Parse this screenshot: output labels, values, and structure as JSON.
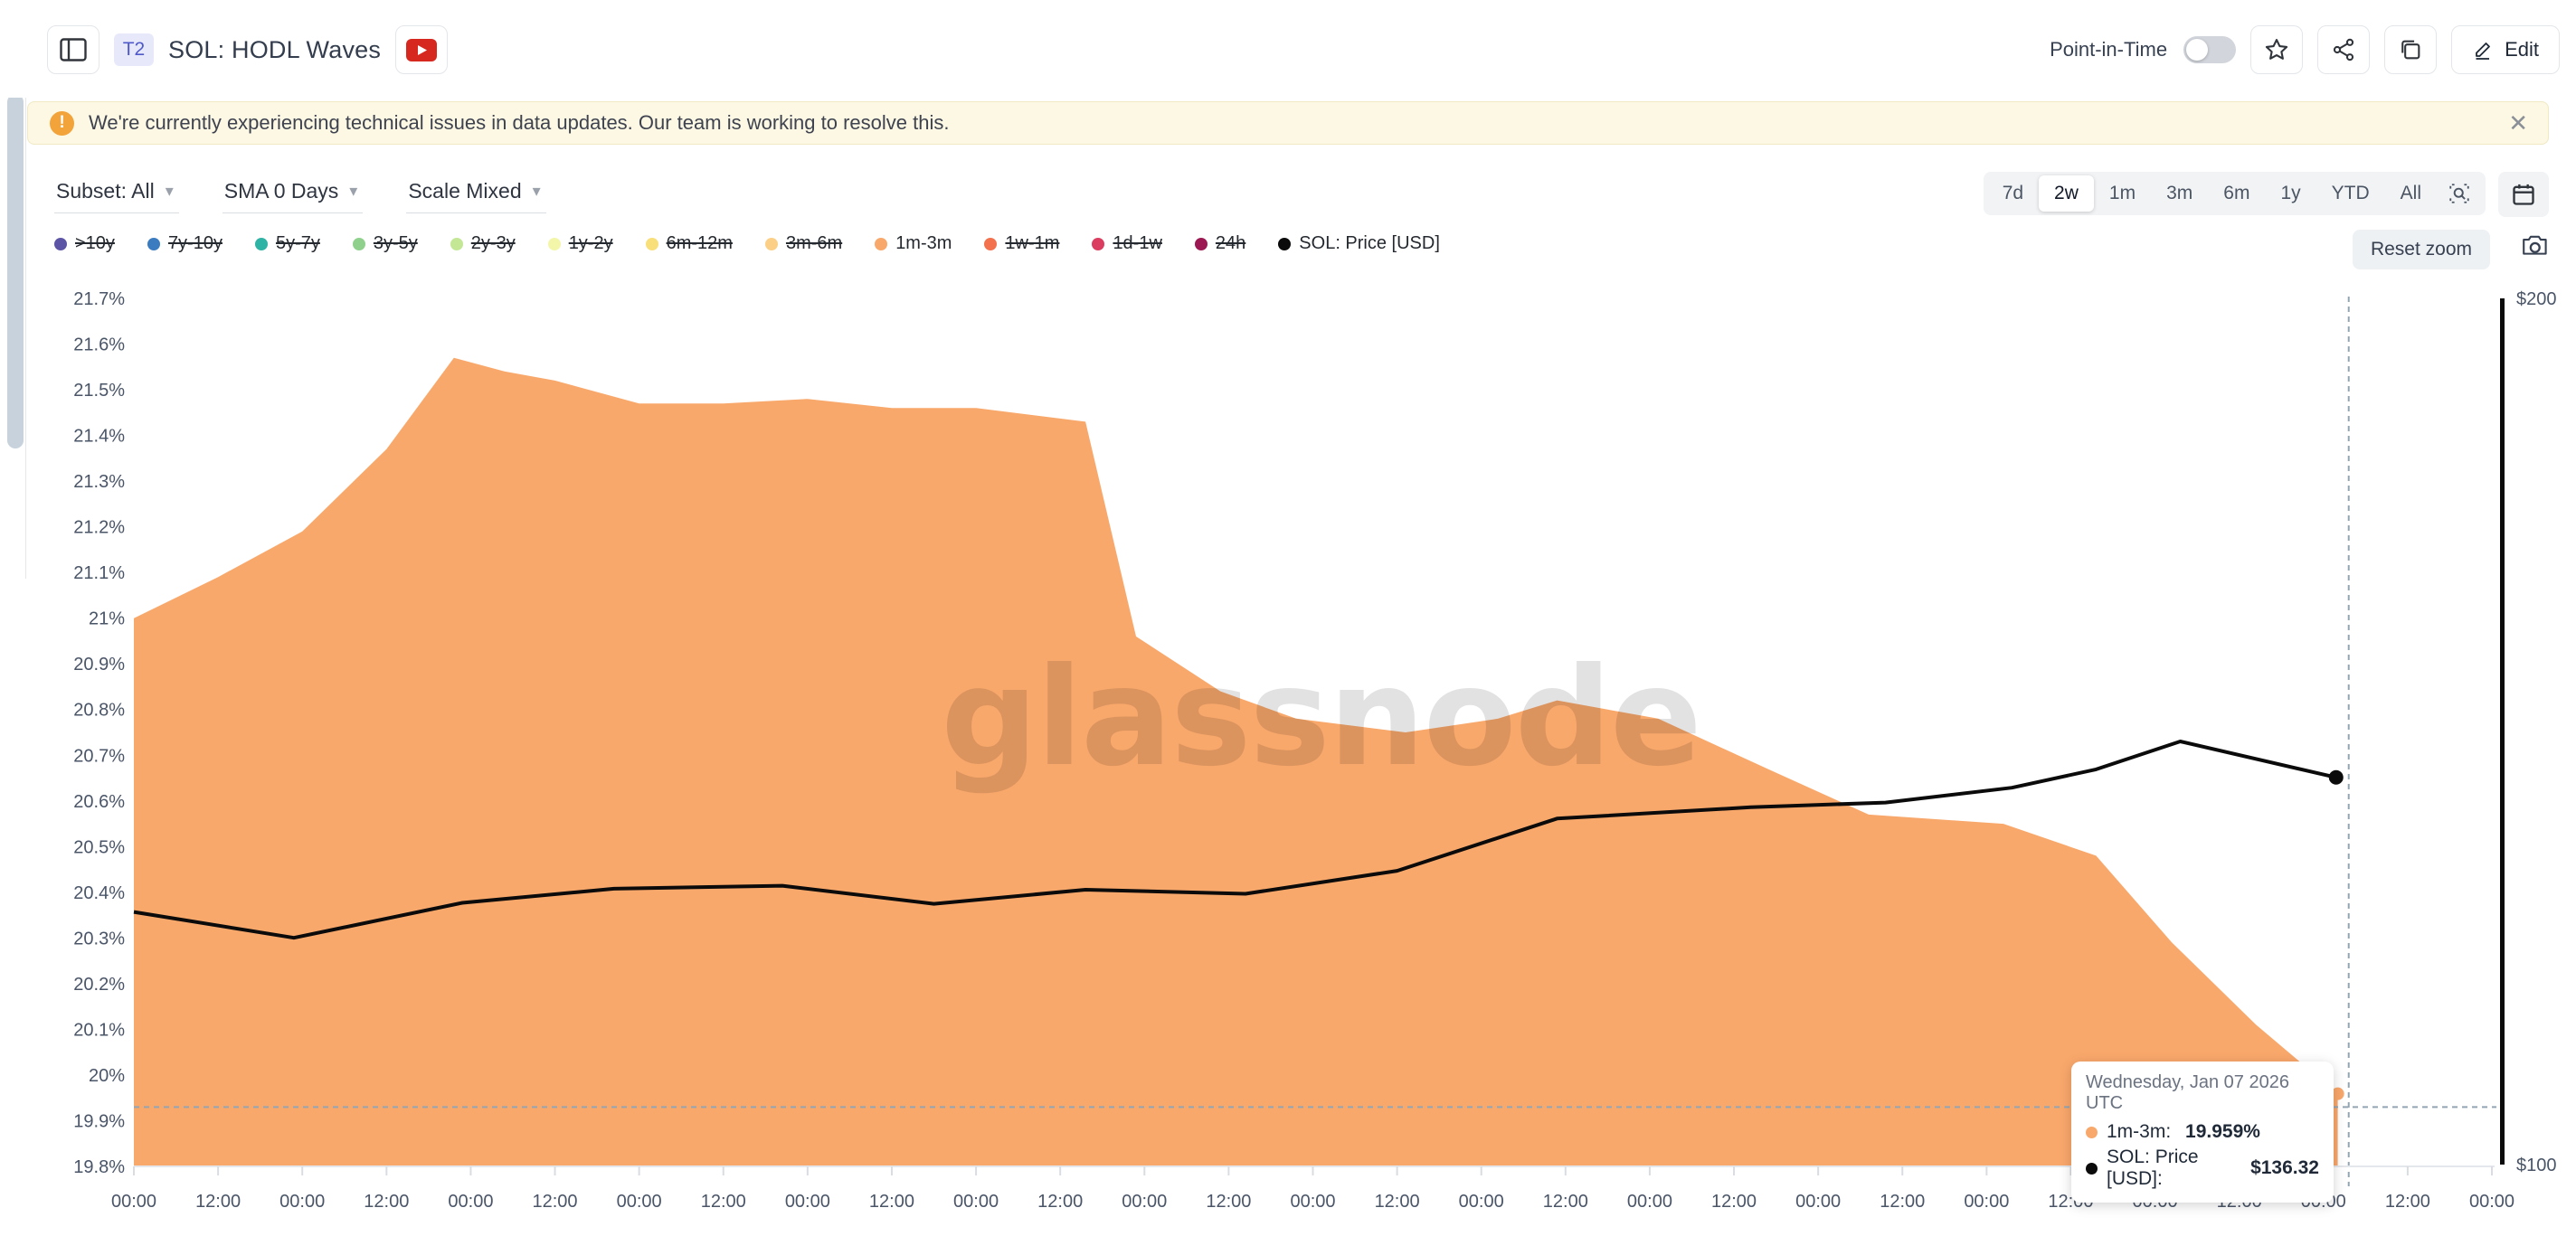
{
  "header": {
    "badge": "T2",
    "title": "SOL: HODL Waves",
    "point_in_time_label": "Point-in-Time",
    "point_in_time_on": false,
    "edit_label": "Edit"
  },
  "banner": {
    "message": "We're currently experiencing technical issues in data updates. Our team is working to resolve this."
  },
  "controls": {
    "subset": "Subset: All",
    "sma": "SMA 0 Days",
    "scale": "Scale Mixed",
    "ranges": [
      "7d",
      "2w",
      "1m",
      "3m",
      "6m",
      "1y",
      "YTD",
      "All"
    ],
    "active_range": "2w",
    "reset_zoom_label": "Reset zoom"
  },
  "legend": {
    "items": [
      {
        "label": ">10y",
        "color": "#5C55A6",
        "active": false
      },
      {
        "label": "7y-10y",
        "color": "#3B7CC0",
        "active": false
      },
      {
        "label": "5y-7y",
        "color": "#2FB3A4",
        "active": false
      },
      {
        "label": "3y-5y",
        "color": "#8FD18C",
        "active": false
      },
      {
        "label": "2y-3y",
        "color": "#C3E795",
        "active": false
      },
      {
        "label": "1y-2y",
        "color": "#F3F6A9",
        "active": false
      },
      {
        "label": "6m-12m",
        "color": "#F9DF79",
        "active": false
      },
      {
        "label": "3m-6m",
        "color": "#FBD086",
        "active": false
      },
      {
        "label": "1m-3m",
        "color": "#F9A86B",
        "active": true
      },
      {
        "label": "1w-1m",
        "color": "#F3714C",
        "active": false
      },
      {
        "label": "1d-1w",
        "color": "#DA3D5F",
        "active": false
      },
      {
        "label": "24h",
        "color": "#9C1853",
        "active": false
      },
      {
        "label": "SOL: Price [USD]",
        "color": "#0B0B0B",
        "active": true
      }
    ]
  },
  "watermark": "glassnode",
  "tooltip": {
    "date": "Wednesday, Jan 07 2026 UTC",
    "rows": [
      {
        "label": "1m-3m",
        "value": "19.959%",
        "color": "#F9A86B"
      },
      {
        "label": "SOL: Price [USD]",
        "value": "$136.32",
        "color": "#0B0B0B"
      }
    ]
  },
  "chart_data": {
    "type": "area+line",
    "title": "SOL: HODL Waves",
    "x_unit": "12h ticks over 2 weeks",
    "x_labels": [
      "00:00",
      "12:00",
      "00:00",
      "12:00",
      "00:00",
      "12:00",
      "00:00",
      "12:00",
      "00:00",
      "12:00",
      "00:00",
      "12:00",
      "00:00",
      "12:00",
      "00:00",
      "12:00",
      "00:00",
      "12:00",
      "00:00",
      "12:00",
      "00:00",
      "12:00",
      "00:00",
      "12:00",
      "00:00",
      "12:00",
      "00:00",
      "12:00",
      "00:00"
    ],
    "y_left_ticks": [
      "21.7%",
      "21.6%",
      "21.5%",
      "21.4%",
      "21.3%",
      "21.2%",
      "21.1%",
      "21%",
      "20.9%",
      "20.8%",
      "20.7%",
      "20.6%",
      "20.5%",
      "20.4%",
      "20.3%",
      "20.2%",
      "20.1%",
      "20%",
      "19.9%",
      "19.8%"
    ],
    "ylim_left": [
      19.8,
      21.7
    ],
    "y_right_ticks": [
      {
        "label": "$200",
        "value": 200
      },
      {
        "label": "$100",
        "value": 100
      }
    ],
    "ylim_right": [
      100,
      200
    ],
    "y_right_scale": "log",
    "grid": false,
    "legend_position": "top",
    "series": [
      {
        "name": "1m-3m",
        "type": "area",
        "color": "#F9A86B",
        "axis": "left",
        "unit": "%",
        "points": [
          [
            0,
            21.0
          ],
          [
            1,
            21.09
          ],
          [
            2,
            21.19
          ],
          [
            3,
            21.37
          ],
          [
            3.8,
            21.57
          ],
          [
            4.4,
            21.54
          ],
          [
            5,
            21.52
          ],
          [
            6,
            21.47
          ],
          [
            7,
            21.47
          ],
          [
            8,
            21.48
          ],
          [
            9,
            21.46
          ],
          [
            10,
            21.46
          ],
          [
            11.3,
            21.43
          ],
          [
            11.9,
            20.96
          ],
          [
            12.9,
            20.84
          ],
          [
            13.8,
            20.78
          ],
          [
            15.1,
            20.75
          ],
          [
            16.2,
            20.78
          ],
          [
            16.9,
            20.82
          ],
          [
            18.1,
            20.78
          ],
          [
            19.4,
            20.67
          ],
          [
            20.6,
            20.57
          ],
          [
            22.2,
            20.55
          ],
          [
            23.3,
            20.48
          ],
          [
            24.2,
            20.29
          ],
          [
            25.2,
            20.11
          ],
          [
            26.17,
            19.959
          ]
        ],
        "last_value_label": "19.959%"
      },
      {
        "name": "SOL: Price [USD]",
        "type": "line",
        "color": "#0B0B0B",
        "axis": "right",
        "unit": "USD",
        "points": [
          [
            0,
            122.4
          ],
          [
            1.9,
            119.9
          ],
          [
            3.9,
            123.3
          ],
          [
            5.7,
            124.7
          ],
          [
            7.7,
            125.0
          ],
          [
            9.5,
            123.2
          ],
          [
            11.3,
            124.6
          ],
          [
            13.2,
            124.2
          ],
          [
            15.0,
            126.5
          ],
          [
            16.9,
            131.9
          ],
          [
            19.2,
            133.1
          ],
          [
            20.8,
            133.6
          ],
          [
            22.3,
            135.2
          ],
          [
            23.3,
            137.2
          ],
          [
            24.3,
            140.3
          ],
          [
            26.15,
            136.32
          ]
        ],
        "last_value_label": "$136.32"
      }
    ],
    "crosshair": {
      "x_halfdays": 26.3,
      "y_percent": 19.93
    }
  }
}
